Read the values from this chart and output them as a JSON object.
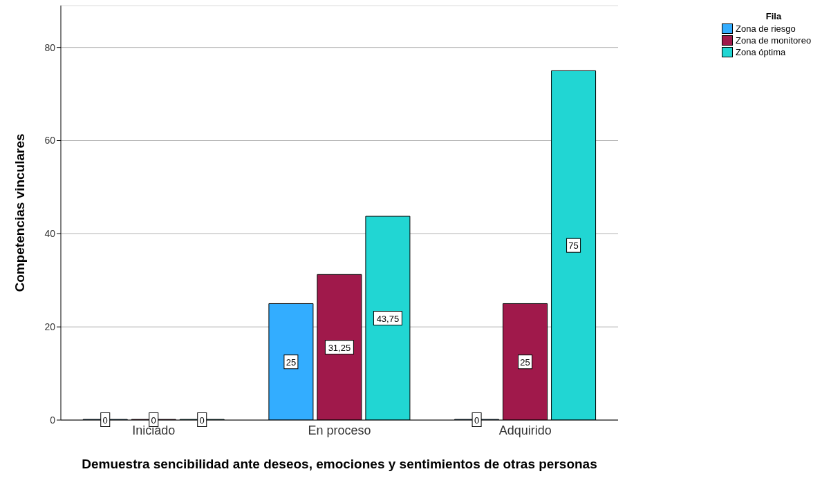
{
  "chart_data": {
    "type": "bar",
    "xlabel": "Demuestra sencibilidad ante deseos, emociones y sentimientos de otras personas",
    "ylabel": "Competencias vinculares",
    "legend_title": "Fila",
    "categories": [
      "Iniciado",
      "En proceso",
      "Adquirido"
    ],
    "series": [
      {
        "name": "Zona de riesgo",
        "color": "#33adff",
        "values": [
          0,
          25,
          0
        ],
        "value_labels": [
          "0",
          "25",
          "0"
        ]
      },
      {
        "name": "Zona de monitoreo",
        "color": "#a0194b",
        "values": [
          0,
          31.25,
          25
        ],
        "value_labels": [
          "0",
          "31,25",
          "25"
        ]
      },
      {
        "name": "Zona óptima",
        "color": "#21d6d3",
        "values": [
          0,
          43.75,
          75
        ],
        "value_labels": [
          "0",
          "43,75",
          "75"
        ]
      }
    ],
    "ylim": [
      0,
      89
    ],
    "yticks": [
      0,
      20,
      40,
      60,
      80
    ],
    "grid": "y",
    "legend": "top right"
  }
}
